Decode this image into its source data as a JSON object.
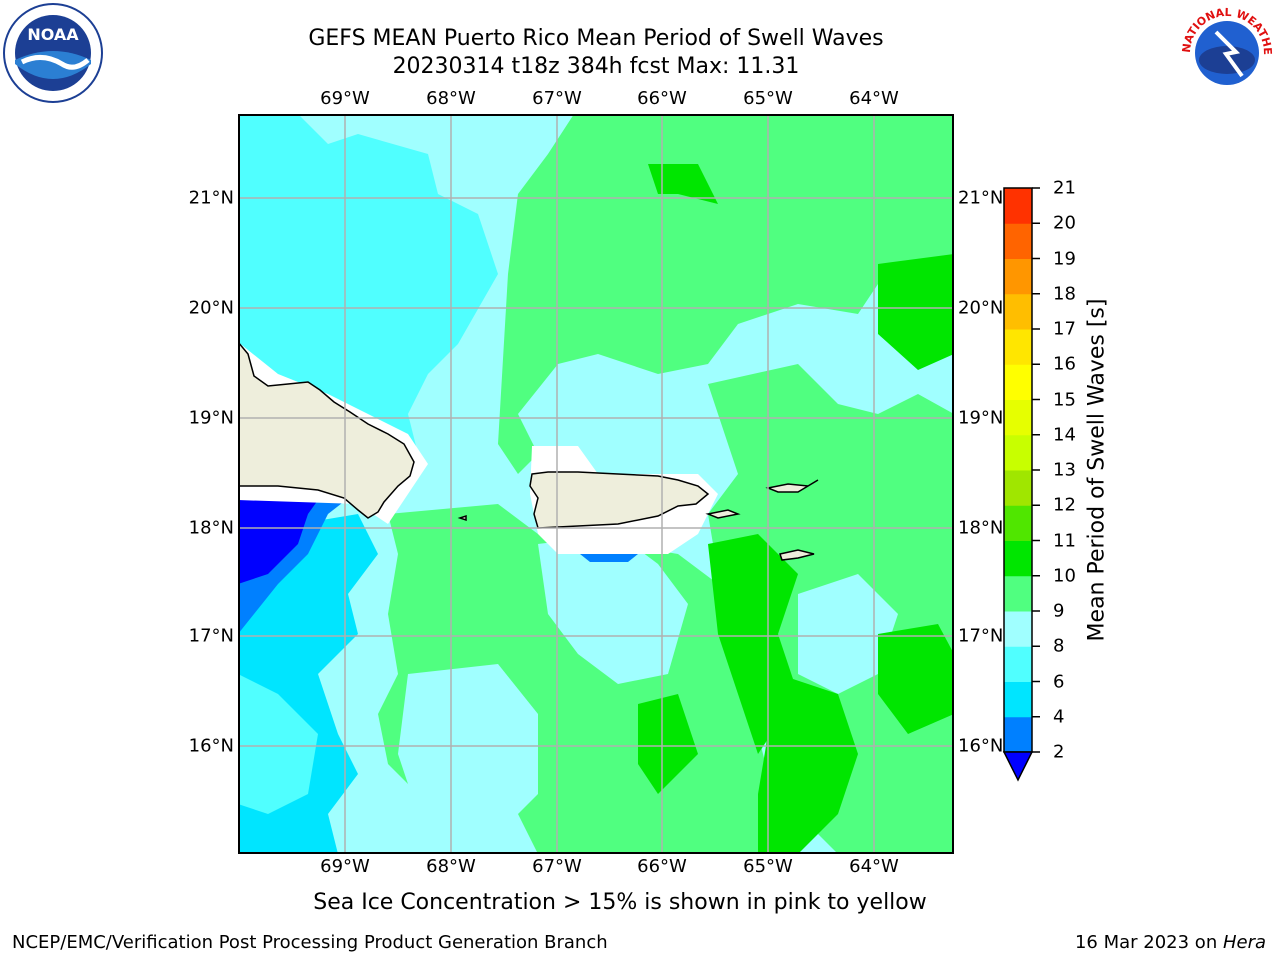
{
  "header": {
    "title_line1": "GEFS MEAN Puerto Rico Mean Period of Swell Waves",
    "title_line2": "20230314 t18z 384h fcst   Max: 11.31"
  },
  "map": {
    "lon_labels": [
      "69°W",
      "68°W",
      "67°W",
      "66°W",
      "65°W",
      "64°W"
    ],
    "lat_labels": [
      "21°N",
      "20°N",
      "19°N",
      "18°N",
      "17°N",
      "16°N"
    ],
    "land_color": "#eeeedc",
    "grid_color": "#b0b0b0"
  },
  "colorbar": {
    "label": "Mean Period of Swell Waves [s]",
    "ticks": [
      "21",
      "20",
      "19",
      "18",
      "17",
      "16",
      "15",
      "14",
      "13",
      "12",
      "11",
      "10",
      "9",
      "8",
      "6",
      "4",
      "2"
    ],
    "colors": [
      "#0000ff",
      "#0080ff",
      "#00e5ff",
      "#50ffff",
      "#a0ffff",
      "#50ff80",
      "#00e600",
      "#50e600",
      "#a0e600",
      "#c8ff00",
      "#e6ff00",
      "#ffff00",
      "#ffe600",
      "#ffbe00",
      "#ff9600",
      "#ff6400",
      "#ff3200",
      "#ff0000"
    ]
  },
  "footnote": "Sea Ice Concentration > 15% is shown in pink to yellow",
  "footer": {
    "left": "NCEP/EMC/Verification Post Processing Product Generation Branch",
    "right_date": "16 Mar 2023 on ",
    "right_host": "Hera"
  },
  "logos": {
    "noaa_text": "NOAA",
    "nws_text": "NATIONAL WEATHER SERVICE"
  }
}
